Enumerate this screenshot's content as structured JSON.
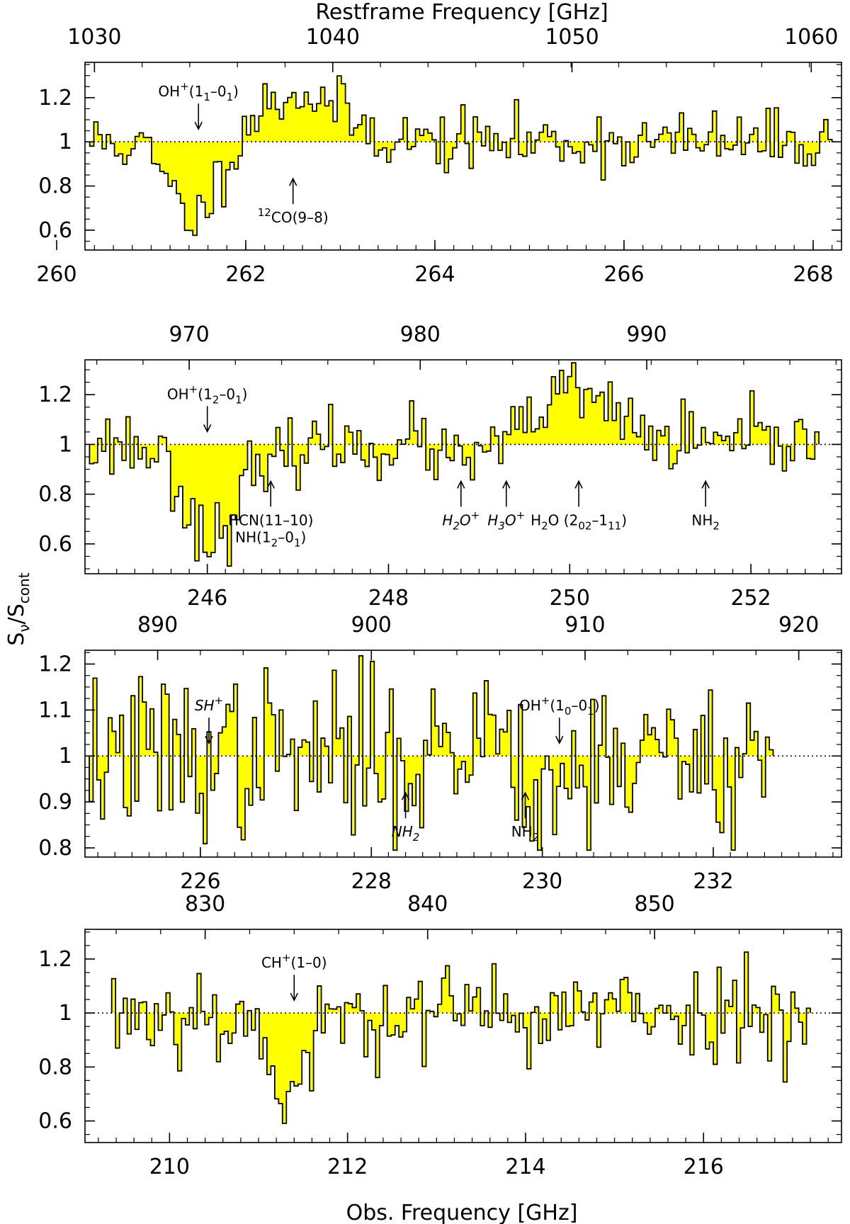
{
  "chart_data": {
    "type": "step",
    "title": "",
    "top_xlabel": "Restframe Frequency [GHz]",
    "xlabel": "Obs. Frequency [GHz]",
    "ylabel_main": "S",
    "ylabel_sub1": "ν",
    "ylabel_mid": "/S",
    "ylabel_sub2": "cont",
    "fill_color": "#ffff00",
    "line_color": "#000000",
    "baseline": 1.0,
    "panels": [
      {
        "xlim": [
          260.3,
          268.3
        ],
        "ylim": [
          0.51,
          1.36
        ],
        "x_ticks": [
          "260",
          "262",
          "264",
          "266",
          "268"
        ],
        "x_tick_values": [
          260,
          262,
          264,
          266,
          268
        ],
        "top_ticks": [
          "1030",
          "1040",
          "1050",
          "1060"
        ],
        "top_tick_positions": [
          260.4,
          262.92,
          265.45,
          267.98
        ],
        "y_ticks": [
          "0.6",
          "0.8",
          "1",
          "1.2"
        ],
        "y_tick_values": [
          0.6,
          0.8,
          1.0,
          1.2
        ],
        "x_range": [
          260.35,
          268.2
        ],
        "n_bins": 180,
        "seed": 11,
        "noise": 0.07,
        "features": [
          {
            "center": 261.45,
            "width": 0.26,
            "depth": -0.35
          },
          {
            "center": 262.55,
            "width": 0.45,
            "depth": 0.22
          }
        ],
        "annotations": [
          {
            "label": "OH+(11–01)",
            "x": 261.5,
            "dir": "down",
            "style": "normal"
          },
          {
            "label": "12CO(9–8)",
            "x": 262.5,
            "dir": "up",
            "style": "normal"
          }
        ]
      },
      {
        "xlim": [
          244.65,
          253.0
        ],
        "ylim": [
          0.48,
          1.34
        ],
        "x_ticks": [
          "246",
          "248",
          "250",
          "252"
        ],
        "x_tick_values": [
          246,
          248,
          250,
          252
        ],
        "top_ticks": [
          "970",
          "980",
          "990"
        ],
        "top_tick_positions": [
          245.8,
          248.35,
          250.85
        ],
        "y_ticks": [
          "0.6",
          "0.8",
          "1",
          "1.2"
        ],
        "y_tick_values": [
          0.6,
          0.8,
          1.0,
          1.2
        ],
        "x_range": [
          244.7,
          252.75
        ],
        "n_bins": 180,
        "seed": 23,
        "noise": 0.07,
        "features": [
          {
            "center": 246.05,
            "width": 0.28,
            "depth": -0.38
          },
          {
            "center": 246.7,
            "width": 0.12,
            "depth": -0.1
          },
          {
            "center": 248.8,
            "width": 0.15,
            "depth": -0.1
          },
          {
            "center": 249.3,
            "width": 0.12,
            "depth": -0.07
          },
          {
            "center": 250.05,
            "width": 0.45,
            "depth": 0.2
          }
        ],
        "annotations": [
          {
            "label": "OH+(12–01)",
            "x": 246.0,
            "dir": "down",
            "style": "normal"
          },
          {
            "label": "HCN(11–10)",
            "label2": "NH(12–01)",
            "x": 246.7,
            "dir": "up",
            "style": "normal"
          },
          {
            "label": "H2O+",
            "x": 248.8,
            "dir": "up",
            "style": "italic"
          },
          {
            "label": "H3O+",
            "x": 249.3,
            "dir": "up",
            "style": "italic"
          },
          {
            "label": "H2O (202–111)",
            "x": 250.1,
            "dir": "up",
            "style": "normal"
          },
          {
            "label": "NH2",
            "x": 251.5,
            "dir": "up",
            "style": "normal"
          }
        ]
      },
      {
        "xlim": [
          224.65,
          233.5
        ],
        "ylim": [
          0.78,
          1.23
        ],
        "x_ticks": [
          "226",
          "228",
          "230",
          "232"
        ],
        "x_tick_values": [
          226,
          228,
          230,
          232
        ],
        "top_ticks": [
          "890",
          "900",
          "910",
          "920"
        ],
        "top_tick_positions": [
          225.5,
          228.0,
          230.5,
          233.0
        ],
        "y_ticks": [
          "0.8",
          "0.9",
          "1",
          "1.1",
          "1.2"
        ],
        "y_tick_values": [
          0.8,
          0.9,
          1.0,
          1.1,
          1.2
        ],
        "x_range": [
          224.7,
          232.7
        ],
        "n_bins": 180,
        "seed": 37,
        "noise": 0.09,
        "features": [
          {
            "center": 229.5,
            "width": 0.25,
            "depth": 0.09
          },
          {
            "center": 230.0,
            "width": 0.3,
            "depth": -0.08
          }
        ],
        "annotations": [
          {
            "label": "SH+",
            "x": 226.1,
            "dir": "down",
            "style": "italic"
          },
          {
            "label": "OH+(10–01)",
            "x": 230.2,
            "dir": "down",
            "style": "normal"
          },
          {
            "label": "NH2",
            "x": 228.4,
            "dir": "up",
            "style": "italic"
          },
          {
            "label": "NH2",
            "x": 229.8,
            "dir": "up",
            "style": "normal"
          }
        ]
      },
      {
        "xlim": [
          209.05,
          217.55
        ],
        "ylim": [
          0.52,
          1.31
        ],
        "x_ticks": [
          "210",
          "212",
          "214",
          "216"
        ],
        "x_tick_values": [
          210,
          212,
          214,
          216
        ],
        "top_ticks": [
          "830",
          "840",
          "850"
        ],
        "top_tick_positions": [
          210.4,
          212.9,
          215.45
        ],
        "y_ticks": [
          "0.6",
          "0.8",
          "1",
          "1.2"
        ],
        "y_tick_values": [
          0.6,
          0.8,
          1.0,
          1.2
        ],
        "x_range": [
          209.35,
          217.2
        ],
        "n_bins": 180,
        "seed": 53,
        "noise": 0.09,
        "features": [
          {
            "center": 211.35,
            "width": 0.22,
            "depth": -0.3
          }
        ],
        "annotations": [
          {
            "label": "CH+(1–0)",
            "x": 211.4,
            "dir": "down",
            "style": "normal"
          }
        ]
      }
    ]
  }
}
